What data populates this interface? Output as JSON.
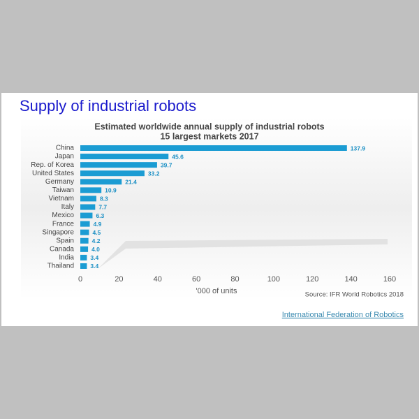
{
  "header": {
    "title": "Supply of industrial robots"
  },
  "chart_data": {
    "type": "bar",
    "orientation": "horizontal",
    "title": "Estimated worldwide annual supply of industrial robots",
    "subtitle": "15 largest markets 2017",
    "categories": [
      "China",
      "Japan",
      "Rep. of Korea",
      "United States",
      "Germany",
      "Taiwan",
      "Vietnam",
      "Italy",
      "Mexico",
      "France",
      "Singapore",
      "Spain",
      "Canada",
      "India",
      "Thailand"
    ],
    "values": [
      137.9,
      45.6,
      39.7,
      33.2,
      21.4,
      10.9,
      8.3,
      7.7,
      6.3,
      4.9,
      4.5,
      4.2,
      4.0,
      3.4,
      3.4
    ],
    "value_labels": [
      "137.9",
      "45.6",
      "39.7",
      "33.2",
      "21.4",
      "10.9",
      "8.3",
      "7.7",
      "6.3",
      "4.9",
      "4.5",
      "4.2",
      "4.0",
      "3.4",
      "3.4"
    ],
    "color": "#1b9cd3",
    "xlim": [
      0,
      160
    ],
    "xticks": [
      0,
      20,
      40,
      60,
      80,
      100,
      120,
      140,
      160
    ],
    "xlabel": "'000 of units",
    "source": "Source: IFR World Robotics 2018"
  },
  "footer": {
    "link": "International Federation of Robotics"
  }
}
